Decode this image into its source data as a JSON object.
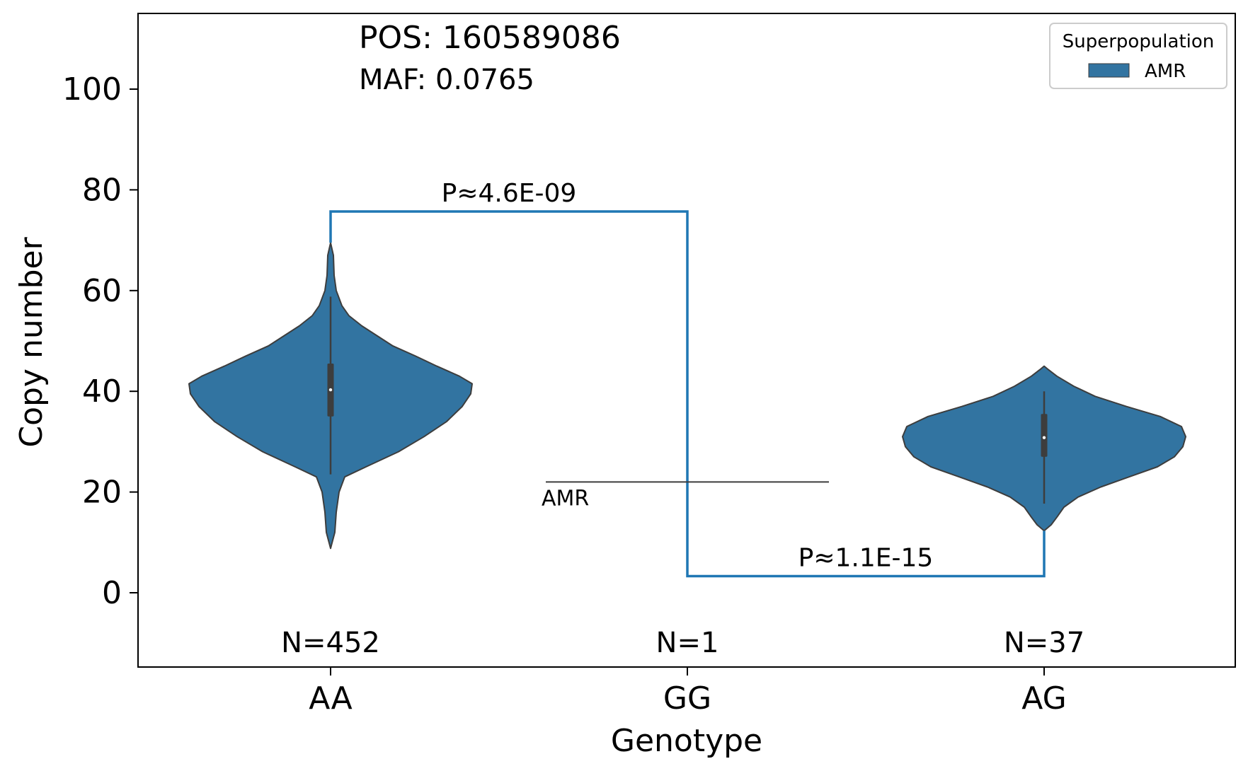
{
  "chart_data": {
    "type": "violin",
    "title": "",
    "xlabel": "Genotype",
    "ylabel": "Copy number",
    "ylim": [
      -14.5,
      115
    ],
    "yticks": [
      0,
      20,
      40,
      60,
      80,
      100
    ],
    "categories": [
      "AA",
      "GG",
      "AG"
    ],
    "counts": [
      "N=452",
      "N=1",
      "N=37"
    ],
    "annotations": {
      "pos": "POS: 160589086",
      "maf": "MAF: 0.0765"
    },
    "series": [
      {
        "name": "AMR",
        "color": "#3274a1",
        "violins": [
          {
            "category": "AA",
            "min": 8.8,
            "q1": 35,
            "median": 40.3,
            "q3": 45.5,
            "whisker_low": 23.5,
            "whisker_high": 58.8,
            "max": 69.5,
            "profile": [
              [
                8.8,
                0.0
              ],
              [
                12,
                0.03
              ],
              [
                16,
                0.04
              ],
              [
                20,
                0.06
              ],
              [
                23,
                0.1
              ],
              [
                25,
                0.25
              ],
              [
                28,
                0.48
              ],
              [
                31,
                0.66
              ],
              [
                34,
                0.82
              ],
              [
                37,
                0.93
              ],
              [
                39.5,
                0.99
              ],
              [
                41.5,
                1.0
              ],
              [
                43,
                0.91
              ],
              [
                45,
                0.75
              ],
              [
                47,
                0.6
              ],
              [
                49,
                0.44
              ],
              [
                51,
                0.33
              ],
              [
                53,
                0.22
              ],
              [
                55,
                0.13
              ],
              [
                57,
                0.08
              ],
              [
                60,
                0.04
              ],
              [
                63,
                0.025
              ],
              [
                67,
                0.02
              ],
              [
                69.5,
                0.0
              ]
            ]
          },
          {
            "category": "AG",
            "min": 12.3,
            "q1": 27,
            "median": 30.8,
            "q3": 35.5,
            "whisker_low": 17.7,
            "whisker_high": 40,
            "max": 45,
            "profile": [
              [
                12.3,
                0.0
              ],
              [
                13.5,
                0.05
              ],
              [
                15,
                0.09
              ],
              [
                17,
                0.14
              ],
              [
                19,
                0.24
              ],
              [
                21,
                0.4
              ],
              [
                23,
                0.6
              ],
              [
                25,
                0.8
              ],
              [
                27,
                0.92
              ],
              [
                29,
                0.98
              ],
              [
                31,
                1.0
              ],
              [
                33,
                0.97
              ],
              [
                35,
                0.82
              ],
              [
                37,
                0.58
              ],
              [
                39,
                0.36
              ],
              [
                41,
                0.21
              ],
              [
                43,
                0.09
              ],
              [
                44.3,
                0.03
              ],
              [
                45,
                0.0
              ]
            ]
          }
        ]
      }
    ],
    "comparisons": [
      {
        "from": "AA",
        "to": "GG",
        "y_bracket": 75.7,
        "label": "P≈4.6E-09"
      },
      {
        "from": "GG",
        "to": "AG",
        "y_bracket": 3.3,
        "label": "P≈1.1E-15"
      }
    ],
    "gg_point": {
      "category": "GG",
      "value": 22,
      "label": "AMR"
    },
    "legend": {
      "title": "Superpopulation",
      "entries": [
        "AMR"
      ],
      "placement": "top-right"
    },
    "grid": false
  }
}
